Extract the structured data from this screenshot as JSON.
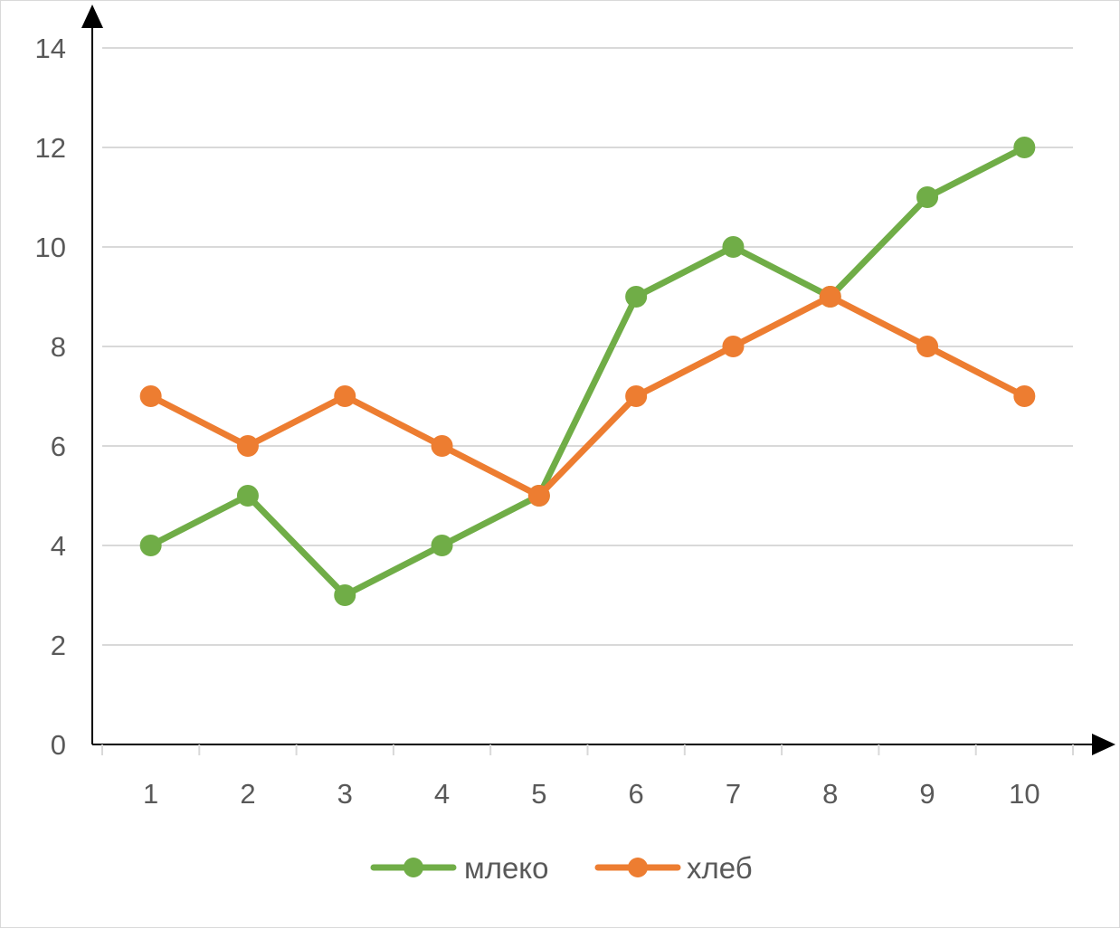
{
  "chart_data": {
    "type": "line",
    "title": "",
    "xlabel": "",
    "ylabel": "",
    "categories": [
      "1",
      "2",
      "3",
      "4",
      "5",
      "6",
      "7",
      "8",
      "9",
      "10"
    ],
    "ylim": [
      0,
      14
    ],
    "yticks": [
      "0",
      "2",
      "4",
      "6",
      "8",
      "10",
      "12",
      "14"
    ],
    "grid": "horizontal",
    "legend_position": "bottom",
    "series": [
      {
        "name": "млеко",
        "color": "#70ad47",
        "values": [
          4,
          5,
          3,
          4,
          5,
          9,
          10,
          9,
          11,
          12
        ]
      },
      {
        "name": "хлеб",
        "color": "#ed7d31",
        "values": [
          7,
          6,
          7,
          6,
          5,
          7,
          8,
          9,
          8,
          7
        ]
      }
    ]
  }
}
